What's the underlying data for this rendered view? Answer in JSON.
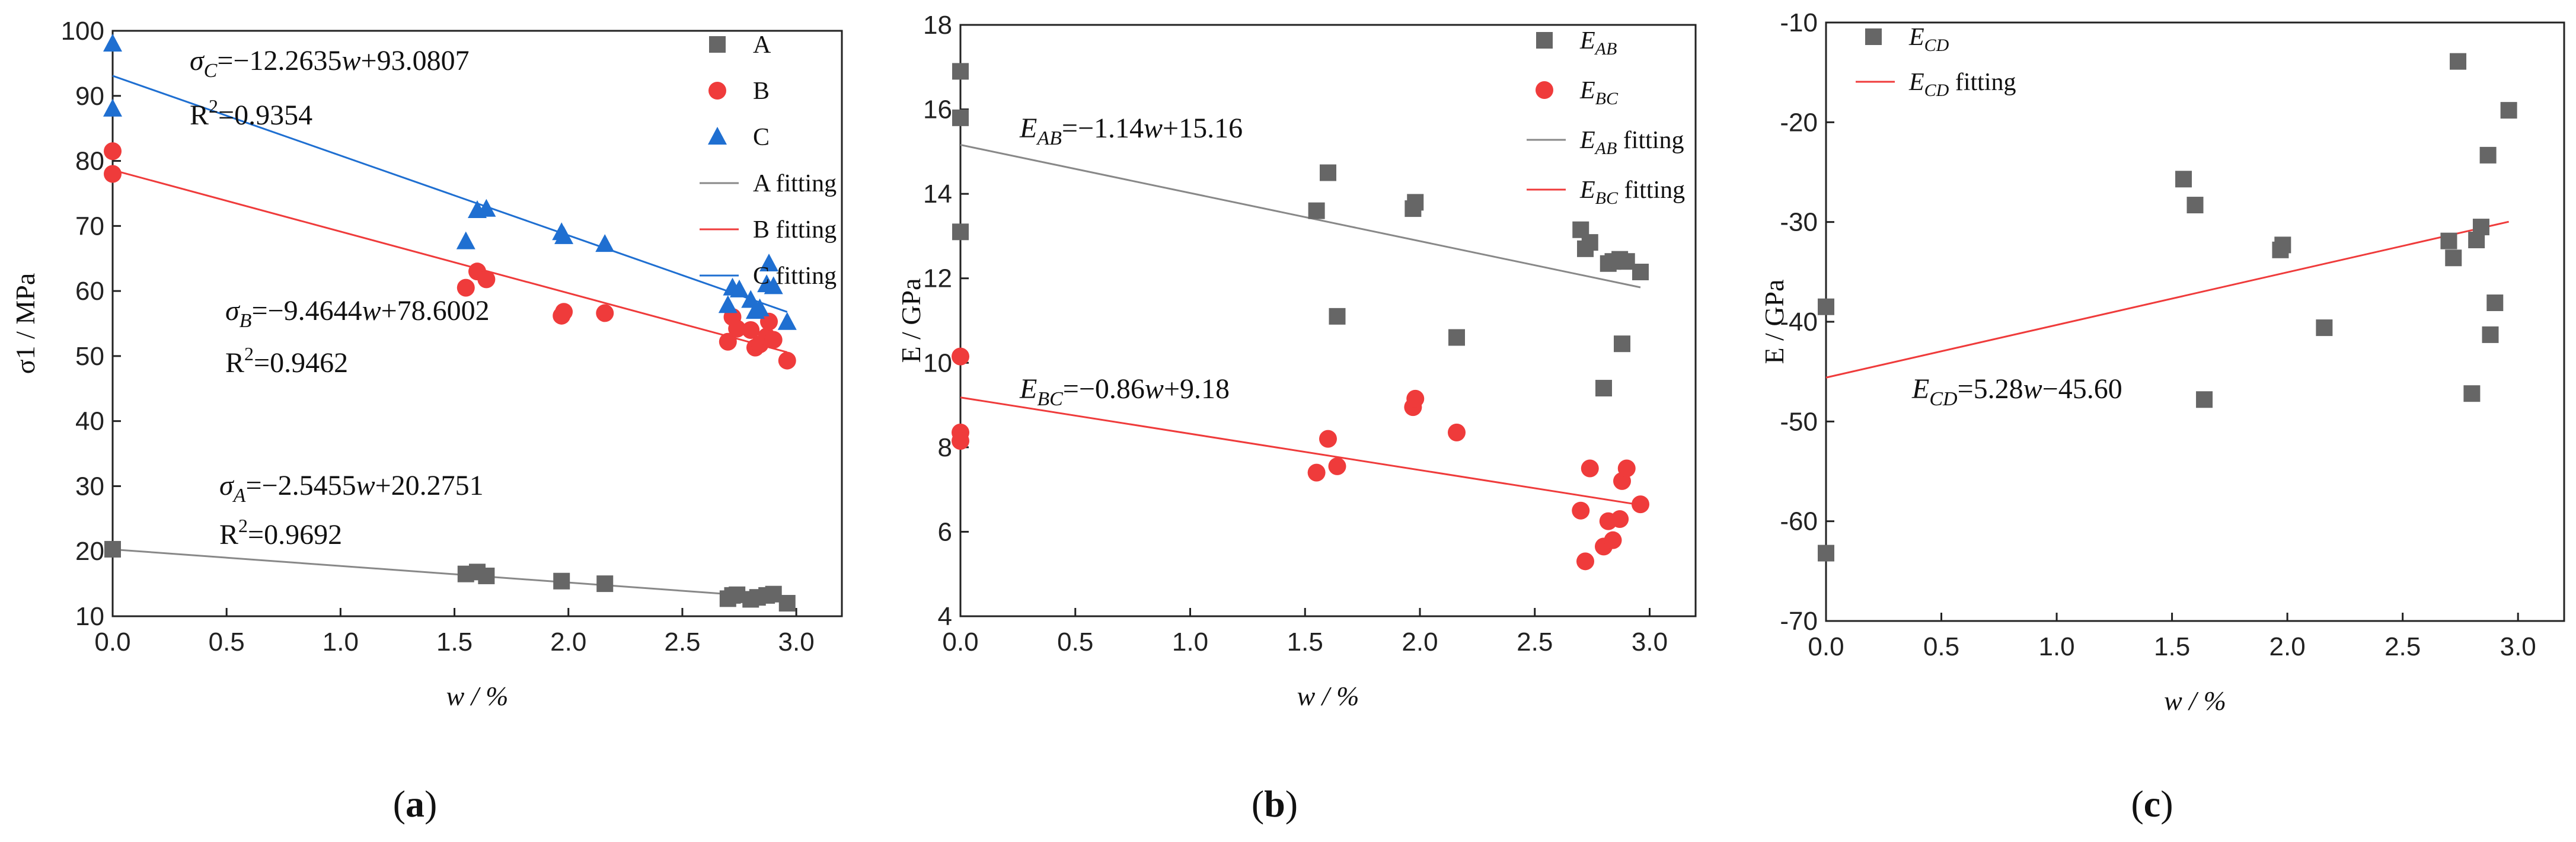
{
  "chart_data": [
    {
      "type": "scatter",
      "panel_label": "(a)",
      "xlabel": "w / %",
      "ylabel": "σ1 / MPa",
      "xlim": [
        0,
        3.2
      ],
      "ylim": [
        10,
        100
      ],
      "xticks": [
        "0.0",
        "0.5",
        "1.0",
        "1.5",
        "2.0",
        "2.5",
        "3.0"
      ],
      "yticks": [
        "10",
        "20",
        "30",
        "40",
        "50",
        "60",
        "70",
        "80",
        "90",
        "100"
      ],
      "legend_position": "top-right",
      "series": [
        {
          "name": "A",
          "marker": "square",
          "color": "#666666",
          "x": [
            0,
            1.55,
            1.6,
            1.64,
            1.97,
            2.16,
            2.7,
            2.72,
            2.74,
            2.8,
            2.83,
            2.87,
            2.9,
            2.96
          ],
          "y": [
            20.3,
            16.5,
            16.8,
            16.2,
            15.4,
            15.0,
            12.7,
            13.2,
            13.3,
            12.6,
            12.9,
            13.2,
            13.4,
            12.0
          ]
        },
        {
          "name": "B",
          "marker": "circle",
          "color": "#ef3b3b",
          "x": [
            0,
            0,
            1.55,
            1.6,
            1.64,
            1.97,
            1.98,
            2.16,
            2.7,
            2.72,
            2.74,
            2.8,
            2.82,
            2.84,
            2.87,
            2.88,
            2.9,
            2.96
          ],
          "y": [
            81.5,
            78.0,
            60.5,
            63.0,
            61.8,
            56.2,
            56.8,
            56.6,
            52.2,
            56.0,
            54.2,
            54.0,
            51.3,
            51.8,
            53.0,
            55.3,
            52.5,
            49.3
          ]
        },
        {
          "name": "C",
          "marker": "triangle",
          "color": "#1f6fd1",
          "x": [
            0,
            0,
            1.55,
            1.6,
            1.64,
            1.97,
            1.98,
            2.16,
            2.7,
            2.72,
            2.75,
            2.8,
            2.82,
            2.84,
            2.87,
            2.88,
            2.9,
            2.96
          ],
          "y": [
            98.0,
            88.0,
            67.6,
            72.4,
            72.6,
            69.0,
            68.4,
            67.2,
            57.8,
            60.5,
            60.2,
            58.6,
            56.9,
            57.3,
            61.0,
            64.2,
            60.7,
            55.2
          ]
        }
      ],
      "fits": [
        {
          "name": "A fitting",
          "color": "#888888",
          "slope": -2.5455,
          "intercept": 20.2751,
          "x_range": [
            0,
            2.96
          ]
        },
        {
          "name": "B fitting",
          "color": "#ef3b3b",
          "slope": -9.4644,
          "intercept": 78.6002,
          "x_range": [
            0,
            2.96
          ]
        },
        {
          "name": "C fitting",
          "color": "#1f6fd1",
          "slope": -12.2635,
          "intercept": 93.0807,
          "x_range": [
            0,
            2.96
          ]
        }
      ],
      "annotations": {
        "c_eq": {
          "sym": "σ",
          "sub": "C",
          "rest": "=−12.2635w+93.0807"
        },
        "c_r2": {
          "pre": "R",
          "sup": "2",
          "rest": "=0.9354"
        },
        "b_eq": {
          "sym": "σ",
          "sub": "B",
          "rest": "=−9.4644w+78.6002"
        },
        "b_r2": {
          "pre": "R",
          "sup": "2",
          "rest": "=0.9462"
        },
        "a_eq": {
          "sym": "σ",
          "sub": "A",
          "rest": "=−2.5455w+20.2751"
        },
        "a_r2": {
          "pre": "R",
          "sup": "2",
          "rest": "=0.9692"
        }
      }
    },
    {
      "type": "scatter",
      "panel_label": "(b)",
      "xlabel": "w / %",
      "ylabel": "E / GPa",
      "xlim": [
        0,
        3.2
      ],
      "ylim": [
        4,
        18
      ],
      "xticks": [
        "0.0",
        "0.5",
        "1.0",
        "1.5",
        "2.0",
        "2.5",
        "3.0"
      ],
      "yticks": [
        "4",
        "6",
        "8",
        "10",
        "12",
        "14",
        "16",
        "18"
      ],
      "legend_position": "top-right",
      "series": [
        {
          "name": "E_AB",
          "marker": "square",
          "color": "#666666",
          "x": [
            0,
            0,
            0,
            1.55,
            1.6,
            1.64,
            1.97,
            1.98,
            2.16,
            2.7,
            2.72,
            2.74,
            2.8,
            2.82,
            2.84,
            2.87,
            2.88,
            2.9,
            2.96
          ],
          "y": [
            16.9,
            15.8,
            13.1,
            13.6,
            14.5,
            11.1,
            13.65,
            13.8,
            10.6,
            13.15,
            12.7,
            12.85,
            9.4,
            12.35,
            12.4,
            12.45,
            10.45,
            12.4,
            12.15
          ]
        },
        {
          "name": "E_BC",
          "marker": "circle",
          "color": "#ef3b3b",
          "x": [
            0,
            0,
            0,
            1.55,
            1.6,
            1.64,
            1.97,
            1.98,
            2.16,
            2.7,
            2.72,
            2.74,
            2.8,
            2.82,
            2.84,
            2.87,
            2.88,
            2.9,
            2.96
          ],
          "y": [
            10.15,
            8.35,
            8.15,
            7.4,
            8.2,
            7.55,
            8.95,
            9.15,
            8.35,
            6.5,
            5.3,
            7.5,
            5.65,
            6.25,
            5.8,
            6.3,
            7.2,
            7.5,
            6.65
          ]
        }
      ],
      "fits": [
        {
          "name": "E_AB fitting",
          "color": "#888888",
          "slope": -1.14,
          "intercept": 15.16,
          "x_range": [
            0,
            2.96
          ]
        },
        {
          "name": "E_BC fitting",
          "color": "#ef3b3b",
          "slope": -0.86,
          "intercept": 9.18,
          "x_range": [
            0,
            2.96
          ]
        }
      ],
      "annotations": {
        "ab_eq": {
          "sym": "E",
          "sub": "AB",
          "rest": "=−1.14w+15.16"
        },
        "bc_eq": {
          "sym": "E",
          "sub": "BC",
          "rest": "=−0.86w+9.18"
        }
      }
    },
    {
      "type": "scatter",
      "panel_label": "(c)",
      "xlabel": "w / %",
      "ylabel": "E / GPa",
      "xlim": [
        0,
        3.2
      ],
      "ylim": [
        -70,
        -10
      ],
      "xticks": [
        "0.0",
        "0.5",
        "1.0",
        "1.5",
        "2.0",
        "2.5",
        "3.0"
      ],
      "yticks": [
        "-70",
        "-60",
        "-50",
        "-40",
        "-30",
        "-20",
        "-10"
      ],
      "legend_position": "top-left",
      "series": [
        {
          "name": "E_CD",
          "marker": "square",
          "color": "#666666",
          "x": [
            0,
            0,
            1.55,
            1.6,
            1.64,
            1.97,
            1.98,
            2.16,
            2.7,
            2.72,
            2.74,
            2.8,
            2.82,
            2.84,
            2.87,
            2.88,
            2.9,
            2.96
          ],
          "y": [
            -38.5,
            -63.2,
            -25.7,
            -28.3,
            -47.8,
            -32.8,
            -32.3,
            -40.6,
            -31.9,
            -33.6,
            -13.9,
            -47.2,
            -31.8,
            -30.5,
            -23.3,
            -41.3,
            -38.1,
            -18.8
          ]
        }
      ],
      "fits": [
        {
          "name": "E_CD fitting",
          "color": "#ef3b3b",
          "slope": 5.28,
          "intercept": -45.6,
          "x_range": [
            0,
            2.96
          ]
        }
      ],
      "annotations": {
        "cd_eq": {
          "sym": "E",
          "sub": "CD",
          "rest": "=5.28w−45.60"
        }
      }
    }
  ]
}
